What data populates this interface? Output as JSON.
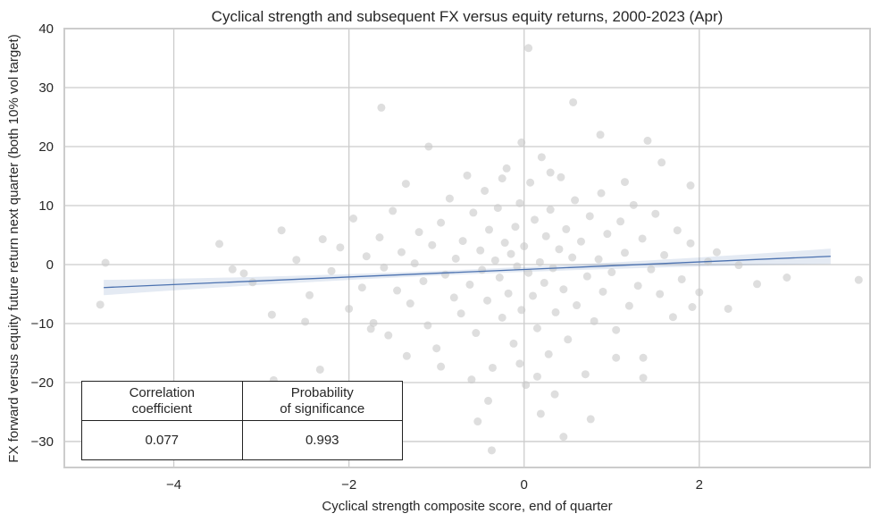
{
  "chart_data": {
    "type": "scatter",
    "title": "Cyclical strength and subsequent FX versus equity returns, 2000-2023 (Apr)",
    "xlabel": "Cyclical strength composite score, end of quarter",
    "ylabel": "FX forward versus equity future return next quarter (both 10% vol target)",
    "xlim": [
      -5.25,
      3.95
    ],
    "ylim": [
      -34.4,
      40
    ],
    "xticks": [
      -4,
      -2,
      0,
      2
    ],
    "xtick_labels": [
      "−4",
      "−2",
      "0",
      "2"
    ],
    "yticks": [
      -30,
      -20,
      -10,
      0,
      10,
      20,
      30,
      40
    ],
    "ytick_labels": [
      "−30",
      "−20",
      "−10",
      "0",
      "10",
      "20",
      "30",
      "40"
    ],
    "grid": true,
    "point_color": "#c8c8c8",
    "line_color": "#4c72b0",
    "regression": {
      "x": [
        -4.8,
        3.5
      ],
      "y": [
        -3.9,
        1.4
      ],
      "ci_halfwidth_ends": 1.3,
      "ci_halfwidth_center": 0.4
    },
    "points": [
      [
        -4.78,
        0.3
      ],
      [
        -4.84,
        -6.8
      ],
      [
        -3.48,
        3.5
      ],
      [
        -1.63,
        26.6
      ],
      [
        0.05,
        36.7
      ],
      [
        0.56,
        27.5
      ],
      [
        0.87,
        22
      ],
      [
        1.41,
        21
      ],
      [
        1.57,
        17.3
      ],
      [
        1.9,
        13.4
      ],
      [
        3.0,
        -2.2
      ],
      [
        3.82,
        -2.6
      ],
      [
        2.66,
        -3.3
      ],
      [
        2.33,
        -7.5
      ],
      [
        1.92,
        -7.2
      ],
      [
        -0.37,
        -31.5
      ],
      [
        0.45,
        -29.2
      ],
      [
        0.76,
        -26.2
      ],
      [
        0.19,
        -25.3
      ],
      [
        -0.53,
        -26.6
      ],
      [
        -0.41,
        -23.1
      ],
      [
        -1.34,
        -15.5
      ],
      [
        -2.33,
        -17.8
      ],
      [
        -2.86,
        -19.6
      ],
      [
        -1.09,
        20
      ],
      [
        -0.03,
        20.7
      ],
      [
        -2.77,
        5.8
      ],
      [
        -2.88,
        -8.5
      ],
      [
        -3.33,
        -0.8
      ],
      [
        1.36,
        -19.2
      ],
      [
        1.05,
        -15.8
      ],
      [
        1.36,
        -15.8
      ],
      [
        -3.2,
        -1.5
      ],
      [
        -3.1,
        -3.0
      ],
      [
        -2.6,
        0.8
      ],
      [
        -2.45,
        -5.2
      ],
      [
        -2.3,
        4.3
      ],
      [
        -2.2,
        -1.1
      ],
      [
        -2.1,
        2.9
      ],
      [
        -2.0,
        -7.5
      ],
      [
        -1.95,
        7.8
      ],
      [
        -1.85,
        -3.9
      ],
      [
        -1.8,
        1.4
      ],
      [
        -1.72,
        -9.9
      ],
      [
        -1.65,
        4.6
      ],
      [
        -1.6,
        -0.5
      ],
      [
        -1.55,
        -12.0
      ],
      [
        -1.5,
        9.1
      ],
      [
        -1.45,
        -4.4
      ],
      [
        -1.4,
        2.1
      ],
      [
        -1.35,
        13.7
      ],
      [
        -1.3,
        -6.6
      ],
      [
        -1.25,
        0.2
      ],
      [
        -1.2,
        5.5
      ],
      [
        -1.15,
        -2.8
      ],
      [
        -1.1,
        -10.3
      ],
      [
        -1.05,
        3.3
      ],
      [
        -1.0,
        -14.2
      ],
      [
        -0.95,
        7.1
      ],
      [
        -0.9,
        -1.7
      ],
      [
        -0.85,
        11.2
      ],
      [
        -0.8,
        -5.6
      ],
      [
        -0.78,
        1.0
      ],
      [
        -0.72,
        -8.3
      ],
      [
        -0.7,
        4.0
      ],
      [
        -0.65,
        15.1
      ],
      [
        -0.62,
        -3.4
      ],
      [
        -0.58,
        8.8
      ],
      [
        -0.55,
        -11.6
      ],
      [
        -0.5,
        2.4
      ],
      [
        -0.48,
        -0.9
      ],
      [
        -0.45,
        12.5
      ],
      [
        -0.42,
        -6.1
      ],
      [
        -0.4,
        5.9
      ],
      [
        -0.36,
        -17.5
      ],
      [
        -0.33,
        0.7
      ],
      [
        -0.3,
        9.6
      ],
      [
        -0.28,
        -2.2
      ],
      [
        -0.25,
        -9.0
      ],
      [
        -0.22,
        3.7
      ],
      [
        -0.2,
        16.3
      ],
      [
        -0.18,
        -4.9
      ],
      [
        -0.15,
        1.8
      ],
      [
        -0.12,
        -13.4
      ],
      [
        -0.1,
        6.4
      ],
      [
        -0.08,
        -0.3
      ],
      [
        -0.05,
        10.4
      ],
      [
        -0.03,
        -7.7
      ],
      [
        0.0,
        3.1
      ],
      [
        0.02,
        -20.4
      ],
      [
        0.05,
        -1.4
      ],
      [
        0.07,
        13.9
      ],
      [
        0.1,
        -5.3
      ],
      [
        0.12,
        7.6
      ],
      [
        0.15,
        -10.8
      ],
      [
        0.18,
        0.4
      ],
      [
        0.2,
        18.2
      ],
      [
        0.23,
        -3.1
      ],
      [
        0.25,
        4.8
      ],
      [
        0.28,
        -15.2
      ],
      [
        0.3,
        9.3
      ],
      [
        0.33,
        -0.6
      ],
      [
        0.36,
        -8.1
      ],
      [
        0.4,
        2.6
      ],
      [
        0.42,
        14.8
      ],
      [
        0.45,
        -4.2
      ],
      [
        0.48,
        6.0
      ],
      [
        0.5,
        -12.7
      ],
      [
        0.55,
        1.2
      ],
      [
        0.58,
        10.9
      ],
      [
        0.6,
        -6.9
      ],
      [
        0.65,
        3.9
      ],
      [
        0.7,
        -18.6
      ],
      [
        0.72,
        -2.0
      ],
      [
        0.75,
        8.2
      ],
      [
        0.8,
        -9.6
      ],
      [
        0.85,
        0.9
      ],
      [
        0.88,
        12.1
      ],
      [
        0.9,
        -4.6
      ],
      [
        0.95,
        5.2
      ],
      [
        1.0,
        -1.3
      ],
      [
        1.05,
        -11.1
      ],
      [
        1.1,
        7.3
      ],
      [
        1.15,
        2.0
      ],
      [
        1.2,
        -7.0
      ],
      [
        1.25,
        10.1
      ],
      [
        1.3,
        -3.6
      ],
      [
        1.35,
        4.4
      ],
      [
        1.45,
        -0.8
      ],
      [
        1.5,
        8.6
      ],
      [
        1.55,
        -5.0
      ],
      [
        1.6,
        1.6
      ],
      [
        1.7,
        -8.9
      ],
      [
        1.75,
        5.8
      ],
      [
        1.8,
        -2.5
      ],
      [
        1.9,
        3.6
      ],
      [
        2.0,
        -4.7
      ],
      [
        2.1,
        0.5
      ],
      [
        2.2,
        2.1
      ],
      [
        2.45,
        -0.1
      ],
      [
        -0.6,
        -19.5
      ],
      [
        -0.05,
        -16.8
      ],
      [
        0.35,
        -22.0
      ],
      [
        0.15,
        -19.0
      ],
      [
        -0.95,
        -17.3
      ],
      [
        -0.25,
        14.6
      ],
      [
        0.3,
        15.6
      ],
      [
        -1.75,
        -10.9
      ],
      [
        1.15,
        14.0
      ],
      [
        -2.5,
        -9.7
      ]
    ]
  },
  "stats_table": {
    "headers": [
      "Correlation\ncoefficient",
      "Probability\nof significance"
    ],
    "values": [
      "0.077",
      "0.993"
    ]
  }
}
